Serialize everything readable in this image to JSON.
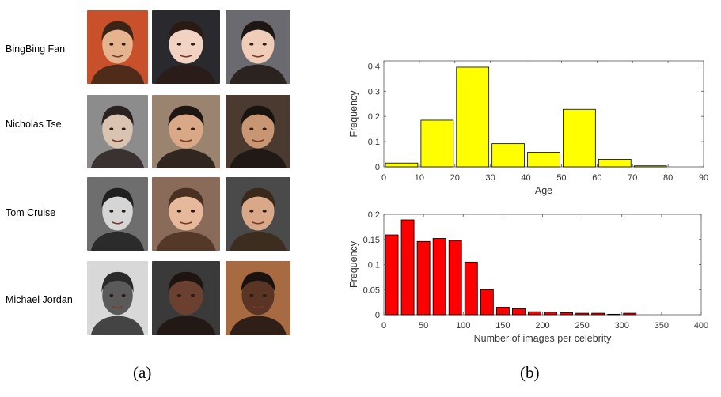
{
  "people": [
    {
      "name": "BingBing Fan",
      "bg": [
        "#c8502a",
        "#2a2a2e",
        "#6a6a70"
      ],
      "skin": [
        "#e5b48f",
        "#f2d2c2",
        "#f0cdb8"
      ],
      "hair": [
        "#3a2418",
        "#2a1a14",
        "#1e1612"
      ]
    },
    {
      "name": "Nicholas Tse",
      "bg": [
        "#8c8c8c",
        "#9a8470",
        "#4a3a30"
      ],
      "skin": [
        "#d8c4b0",
        "#d9a887",
        "#c99673"
      ],
      "hair": [
        "#2a2220",
        "#1e1612",
        "#1a1410"
      ]
    },
    {
      "name": "Tom Cruise",
      "bg": [
        "#6e6e6e",
        "#8a6a58",
        "#4a4a4a"
      ],
      "skin": [
        "#d5d5d5",
        "#e7b99c",
        "#d8a888"
      ],
      "hair": [
        "#202020",
        "#4a3020",
        "#3a2818"
      ]
    },
    {
      "name": "Michael Jordan",
      "bg": [
        "#d8d8d8",
        "#3a3a3a",
        "#a86a40"
      ],
      "skin": [
        "#5a5a5a",
        "#6a4030",
        "#5a3424"
      ],
      "hair": [
        "#2a2a2a",
        "#1e1410",
        "#1a1210"
      ]
    }
  ],
  "captions": {
    "a": "(a)",
    "b": "(b)"
  },
  "colors": {
    "bar_top": "#ffff00",
    "bar_bottom": "#ff0000",
    "bar_edge": "#000000",
    "axis": "#555555"
  },
  "chart_data": [
    {
      "type": "bar",
      "xlabel": "Age",
      "ylabel": "Frequency",
      "x": [
        5,
        15,
        25,
        35,
        45,
        55,
        65,
        75
      ],
      "values": [
        0.015,
        0.185,
        0.395,
        0.092,
        0.058,
        0.228,
        0.03,
        0.004
      ],
      "bin_width": 10,
      "xlim": [
        0,
        90
      ],
      "ylim": [
        0,
        0.42
      ],
      "xticks": [
        0,
        10,
        20,
        30,
        40,
        50,
        60,
        70,
        80,
        90
      ],
      "yticks": [
        0,
        0.1,
        0.2,
        0.3,
        0.4
      ],
      "ytick_labels": [
        "0",
        "0.1",
        "0.2",
        "0.3",
        "0.4"
      ],
      "color": "#ffff00"
    },
    {
      "type": "bar",
      "xlabel": "Number of images per celebrity",
      "ylabel": "Frequency",
      "x": [
        10,
        30,
        50,
        70,
        90,
        110,
        130,
        150,
        170,
        190,
        210,
        230,
        250,
        270,
        290,
        310
      ],
      "values": [
        0.159,
        0.189,
        0.146,
        0.152,
        0.148,
        0.105,
        0.05,
        0.015,
        0.012,
        0.006,
        0.005,
        0.004,
        0.003,
        0.003,
        0.001,
        0.003
      ],
      "bin_width": 20,
      "xlim": [
        0,
        400
      ],
      "ylim": [
        0,
        0.2
      ],
      "xticks": [
        0,
        50,
        100,
        150,
        200,
        250,
        300,
        350,
        400
      ],
      "yticks": [
        0,
        0.05,
        0.1,
        0.15,
        0.2
      ],
      "ytick_labels": [
        "0",
        "0.05",
        "0.1",
        "0.15",
        "0.2"
      ],
      "color": "#ff0000"
    }
  ]
}
